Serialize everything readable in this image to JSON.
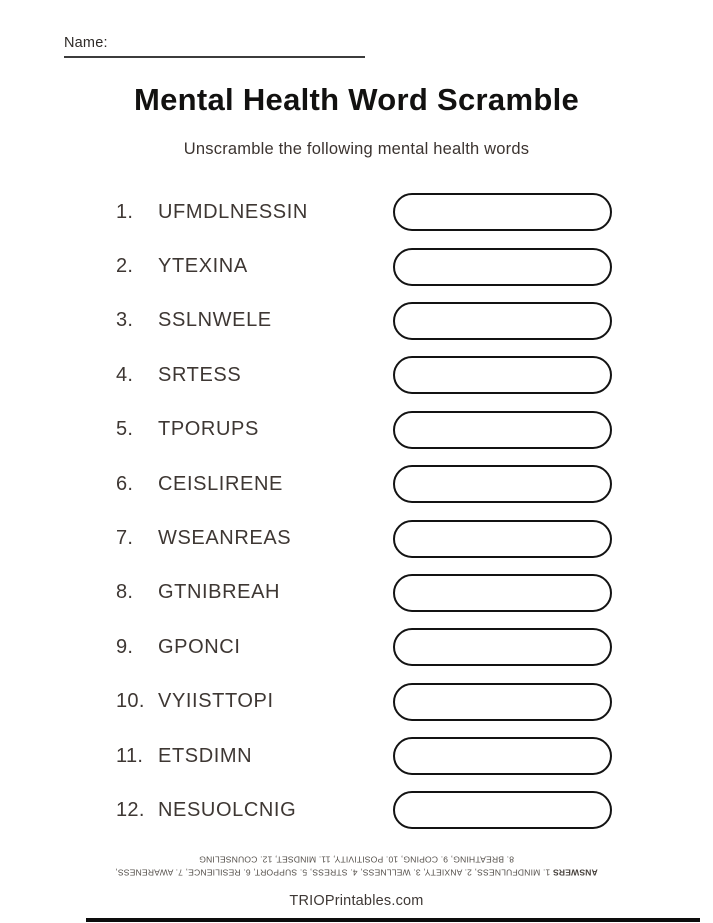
{
  "page": {
    "name_label": "Name:",
    "title": "Mental Health Word Scramble",
    "subtitle": "Unscramble the following mental health words",
    "footer": "TRIOPrintables.com"
  },
  "list": {
    "items": [
      {
        "number": "1.",
        "word": "UFMDLNESSIN"
      },
      {
        "number": "2.",
        "word": "YTEXINA"
      },
      {
        "number": "3.",
        "word": "SSLNWELE"
      },
      {
        "number": "4.",
        "word": "SRTESS"
      },
      {
        "number": "5.",
        "word": "TPORUPS"
      },
      {
        "number": "6.",
        "word": "CEISLIRENE"
      },
      {
        "number": "7.",
        "word": "WSEANREAS"
      },
      {
        "number": "8.",
        "word": "GTNIBREAH"
      },
      {
        "number": "9.",
        "word": "GPONCI"
      },
      {
        "number": "10.",
        "word": "VYIISTTOPI"
      },
      {
        "number": "11.",
        "word": "ETSDIMN"
      },
      {
        "number": "12.",
        "word": "NESUOLCNIG"
      }
    ]
  },
  "answers": {
    "label": "ANSWERS",
    "line1_rest": " 1. MINDFULNESS, 2. ANXIETY, 3. WELLNESS, 4. STRESS, 5. SUPPORT, 6. RESILIENCE, 7. AWARENESS,",
    "line2": "8. BREATHING, 9. COPING, 10. POSITIVITY, 11. MINDSET, 12. COUNSELING"
  },
  "colors": {
    "text_dark": "#3e3733",
    "title": "#121110",
    "box_border": "#131313",
    "background": "#ffffff"
  }
}
